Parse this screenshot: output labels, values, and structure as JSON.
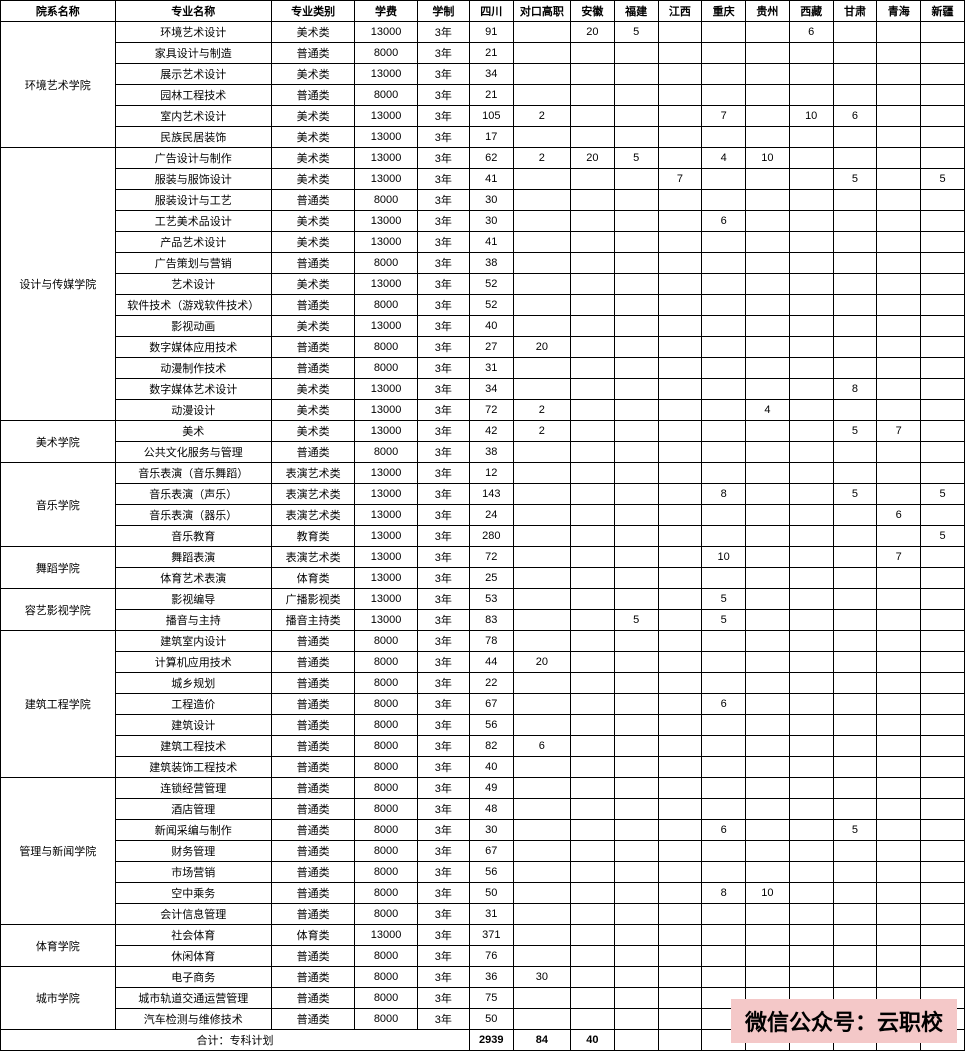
{
  "headers": {
    "dept": "院系名称",
    "major": "专业名称",
    "type": "专业类别",
    "fee": "学费",
    "duration": "学制",
    "provinces": [
      "四川",
      "对口高职",
      "安徽",
      "福建",
      "江西",
      "重庆",
      "贵州",
      "西藏",
      "甘肃",
      "青海",
      "新疆"
    ]
  },
  "totals": {
    "label": "合计：专科计划",
    "values": [
      "2939",
      "84",
      "40",
      "",
      "",
      "",
      "",
      "",
      "",
      "",
      ""
    ]
  },
  "banner": "微信公众号：云职校",
  "departments": [
    {
      "name": "环境艺术学院",
      "rows": [
        {
          "major": "环境艺术设计",
          "type": "美术类",
          "fee": "13000",
          "dur": "3年",
          "v": [
            "91",
            "",
            "20",
            "5",
            "",
            "",
            "",
            "6",
            "",
            "",
            ""
          ]
        },
        {
          "major": "家具设计与制造",
          "type": "普通类",
          "fee": "8000",
          "dur": "3年",
          "v": [
            "21",
            "",
            "",
            "",
            "",
            "",
            "",
            "",
            "",
            "",
            ""
          ]
        },
        {
          "major": "展示艺术设计",
          "type": "美术类",
          "fee": "13000",
          "dur": "3年",
          "v": [
            "34",
            "",
            "",
            "",
            "",
            "",
            "",
            "",
            "",
            "",
            ""
          ]
        },
        {
          "major": "园林工程技术",
          "type": "普通类",
          "fee": "8000",
          "dur": "3年",
          "v": [
            "21",
            "",
            "",
            "",
            "",
            "",
            "",
            "",
            "",
            "",
            ""
          ]
        },
        {
          "major": "室内艺术设计",
          "type": "美术类",
          "fee": "13000",
          "dur": "3年",
          "v": [
            "105",
            "2",
            "",
            "",
            "",
            "7",
            "",
            "10",
            "6",
            "",
            ""
          ]
        },
        {
          "major": "民族民居装饰",
          "type": "美术类",
          "fee": "13000",
          "dur": "3年",
          "v": [
            "17",
            "",
            "",
            "",
            "",
            "",
            "",
            "",
            "",
            "",
            ""
          ]
        }
      ]
    },
    {
      "name": "设计与传媒学院",
      "rows": [
        {
          "major": "广告设计与制作",
          "type": "美术类",
          "fee": "13000",
          "dur": "3年",
          "v": [
            "62",
            "2",
            "20",
            "5",
            "",
            "4",
            "10",
            "",
            "",
            "",
            ""
          ]
        },
        {
          "major": "服装与服饰设计",
          "type": "美术类",
          "fee": "13000",
          "dur": "3年",
          "v": [
            "41",
            "",
            "",
            "",
            "7",
            "",
            "",
            "",
            "5",
            "",
            "5"
          ]
        },
        {
          "major": "服装设计与工艺",
          "type": "普通类",
          "fee": "8000",
          "dur": "3年",
          "v": [
            "30",
            "",
            "",
            "",
            "",
            "",
            "",
            "",
            "",
            "",
            ""
          ]
        },
        {
          "major": "工艺美术品设计",
          "type": "美术类",
          "fee": "13000",
          "dur": "3年",
          "v": [
            "30",
            "",
            "",
            "",
            "",
            "6",
            "",
            "",
            "",
            "",
            ""
          ]
        },
        {
          "major": "产品艺术设计",
          "type": "美术类",
          "fee": "13000",
          "dur": "3年",
          "v": [
            "41",
            "",
            "",
            "",
            "",
            "",
            "",
            "",
            "",
            "",
            ""
          ]
        },
        {
          "major": "广告策划与营销",
          "type": "普通类",
          "fee": "8000",
          "dur": "3年",
          "v": [
            "38",
            "",
            "",
            "",
            "",
            "",
            "",
            "",
            "",
            "",
            ""
          ]
        },
        {
          "major": "艺术设计",
          "type": "美术类",
          "fee": "13000",
          "dur": "3年",
          "v": [
            "52",
            "",
            "",
            "",
            "",
            "",
            "",
            "",
            "",
            "",
            ""
          ]
        },
        {
          "major": "软件技术（游戏软件技术）",
          "type": "普通类",
          "fee": "8000",
          "dur": "3年",
          "v": [
            "52",
            "",
            "",
            "",
            "",
            "",
            "",
            "",
            "",
            "",
            ""
          ]
        },
        {
          "major": "影视动画",
          "type": "美术类",
          "fee": "13000",
          "dur": "3年",
          "v": [
            "40",
            "",
            "",
            "",
            "",
            "",
            "",
            "",
            "",
            "",
            ""
          ]
        },
        {
          "major": "数字媒体应用技术",
          "type": "普通类",
          "fee": "8000",
          "dur": "3年",
          "v": [
            "27",
            "20",
            "",
            "",
            "",
            "",
            "",
            "",
            "",
            "",
            ""
          ]
        },
        {
          "major": "动漫制作技术",
          "type": "普通类",
          "fee": "8000",
          "dur": "3年",
          "v": [
            "31",
            "",
            "",
            "",
            "",
            "",
            "",
            "",
            "",
            "",
            ""
          ]
        },
        {
          "major": "数字媒体艺术设计",
          "type": "美术类",
          "fee": "13000",
          "dur": "3年",
          "v": [
            "34",
            "",
            "",
            "",
            "",
            "",
            "",
            "",
            "8",
            "",
            ""
          ]
        },
        {
          "major": "动漫设计",
          "type": "美术类",
          "fee": "13000",
          "dur": "3年",
          "v": [
            "72",
            "2",
            "",
            "",
            "",
            "",
            "4",
            "",
            "",
            "",
            ""
          ]
        }
      ]
    },
    {
      "name": "美术学院",
      "rows": [
        {
          "major": "美术",
          "type": "美术类",
          "fee": "13000",
          "dur": "3年",
          "v": [
            "42",
            "2",
            "",
            "",
            "",
            "",
            "",
            "",
            "5",
            "7",
            ""
          ]
        },
        {
          "major": "公共文化服务与管理",
          "type": "普通类",
          "fee": "8000",
          "dur": "3年",
          "v": [
            "38",
            "",
            "",
            "",
            "",
            "",
            "",
            "",
            "",
            "",
            ""
          ]
        }
      ]
    },
    {
      "name": "音乐学院",
      "rows": [
        {
          "major": "音乐表演（音乐舞蹈）",
          "type": "表演艺术类",
          "fee": "13000",
          "dur": "3年",
          "v": [
            "12",
            "",
            "",
            "",
            "",
            "",
            "",
            "",
            "",
            "",
            ""
          ]
        },
        {
          "major": "音乐表演（声乐）",
          "type": "表演艺术类",
          "fee": "13000",
          "dur": "3年",
          "v": [
            "143",
            "",
            "",
            "",
            "",
            "8",
            "",
            "",
            "5",
            "",
            "5"
          ]
        },
        {
          "major": "音乐表演（器乐）",
          "type": "表演艺术类",
          "fee": "13000",
          "dur": "3年",
          "v": [
            "24",
            "",
            "",
            "",
            "",
            "",
            "",
            "",
            "",
            "6",
            ""
          ]
        },
        {
          "major": "音乐教育",
          "type": "教育类",
          "fee": "13000",
          "dur": "3年",
          "v": [
            "280",
            "",
            "",
            "",
            "",
            "",
            "",
            "",
            "",
            "",
            "5"
          ]
        }
      ]
    },
    {
      "name": "舞蹈学院",
      "rows": [
        {
          "major": "舞蹈表演",
          "type": "表演艺术类",
          "fee": "13000",
          "dur": "3年",
          "v": [
            "72",
            "",
            "",
            "",
            "",
            "10",
            "",
            "",
            "",
            "7",
            ""
          ]
        },
        {
          "major": "体育艺术表演",
          "type": "体育类",
          "fee": "13000",
          "dur": "3年",
          "v": [
            "25",
            "",
            "",
            "",
            "",
            "",
            "",
            "",
            "",
            "",
            ""
          ]
        }
      ]
    },
    {
      "name": "容艺影视学院",
      "rows": [
        {
          "major": "影视编导",
          "type": "广播影视类",
          "fee": "13000",
          "dur": "3年",
          "v": [
            "53",
            "",
            "",
            "",
            "",
            "5",
            "",
            "",
            "",
            "",
            ""
          ]
        },
        {
          "major": "播音与主持",
          "type": "播音主持类",
          "fee": "13000",
          "dur": "3年",
          "v": [
            "83",
            "",
            "",
            "5",
            "",
            "5",
            "",
            "",
            "",
            "",
            ""
          ]
        }
      ]
    },
    {
      "name": "建筑工程学院",
      "rows": [
        {
          "major": "建筑室内设计",
          "type": "普通类",
          "fee": "8000",
          "dur": "3年",
          "v": [
            "78",
            "",
            "",
            "",
            "",
            "",
            "",
            "",
            "",
            "",
            ""
          ]
        },
        {
          "major": "计算机应用技术",
          "type": "普通类",
          "fee": "8000",
          "dur": "3年",
          "v": [
            "44",
            "20",
            "",
            "",
            "",
            "",
            "",
            "",
            "",
            "",
            ""
          ]
        },
        {
          "major": "城乡规划",
          "type": "普通类",
          "fee": "8000",
          "dur": "3年",
          "v": [
            "22",
            "",
            "",
            "",
            "",
            "",
            "",
            "",
            "",
            "",
            ""
          ]
        },
        {
          "major": "工程造价",
          "type": "普通类",
          "fee": "8000",
          "dur": "3年",
          "v": [
            "67",
            "",
            "",
            "",
            "",
            "6",
            "",
            "",
            "",
            "",
            ""
          ]
        },
        {
          "major": "建筑设计",
          "type": "普通类",
          "fee": "8000",
          "dur": "3年",
          "v": [
            "56",
            "",
            "",
            "",
            "",
            "",
            "",
            "",
            "",
            "",
            ""
          ]
        },
        {
          "major": "建筑工程技术",
          "type": "普通类",
          "fee": "8000",
          "dur": "3年",
          "v": [
            "82",
            "6",
            "",
            "",
            "",
            "",
            "",
            "",
            "",
            "",
            ""
          ]
        },
        {
          "major": "建筑装饰工程技术",
          "type": "普通类",
          "fee": "8000",
          "dur": "3年",
          "v": [
            "40",
            "",
            "",
            "",
            "",
            "",
            "",
            "",
            "",
            "",
            ""
          ]
        }
      ]
    },
    {
      "name": "管理与新闻学院",
      "rows": [
        {
          "major": "连锁经营管理",
          "type": "普通类",
          "fee": "8000",
          "dur": "3年",
          "v": [
            "49",
            "",
            "",
            "",
            "",
            "",
            "",
            "",
            "",
            "",
            ""
          ]
        },
        {
          "major": "酒店管理",
          "type": "普通类",
          "fee": "8000",
          "dur": "3年",
          "v": [
            "48",
            "",
            "",
            "",
            "",
            "",
            "",
            "",
            "",
            "",
            ""
          ]
        },
        {
          "major": "新闻采编与制作",
          "type": "普通类",
          "fee": "8000",
          "dur": "3年",
          "v": [
            "30",
            "",
            "",
            "",
            "",
            "6",
            "",
            "",
            "5",
            "",
            ""
          ]
        },
        {
          "major": "财务管理",
          "type": "普通类",
          "fee": "8000",
          "dur": "3年",
          "v": [
            "67",
            "",
            "",
            "",
            "",
            "",
            "",
            "",
            "",
            "",
            ""
          ]
        },
        {
          "major": "市场营销",
          "type": "普通类",
          "fee": "8000",
          "dur": "3年",
          "v": [
            "56",
            "",
            "",
            "",
            "",
            "",
            "",
            "",
            "",
            "",
            ""
          ]
        },
        {
          "major": "空中乘务",
          "type": "普通类",
          "fee": "8000",
          "dur": "3年",
          "v": [
            "50",
            "",
            "",
            "",
            "",
            "8",
            "10",
            "",
            "",
            "",
            ""
          ]
        },
        {
          "major": "会计信息管理",
          "type": "普通类",
          "fee": "8000",
          "dur": "3年",
          "v": [
            "31",
            "",
            "",
            "",
            "",
            "",
            "",
            "",
            "",
            "",
            ""
          ]
        }
      ]
    },
    {
      "name": "体育学院",
      "rows": [
        {
          "major": "社会体育",
          "type": "体育类",
          "fee": "13000",
          "dur": "3年",
          "v": [
            "371",
            "",
            "",
            "",
            "",
            "",
            "",
            "",
            "",
            "",
            ""
          ]
        },
        {
          "major": "休闲体育",
          "type": "普通类",
          "fee": "8000",
          "dur": "3年",
          "v": [
            "76",
            "",
            "",
            "",
            "",
            "",
            "",
            "",
            "",
            "",
            ""
          ]
        }
      ]
    },
    {
      "name": "城市学院",
      "rows": [
        {
          "major": "电子商务",
          "type": "普通类",
          "fee": "8000",
          "dur": "3年",
          "v": [
            "36",
            "30",
            "",
            "",
            "",
            "",
            "",
            "",
            "",
            "",
            ""
          ]
        },
        {
          "major": "城市轨道交通运营管理",
          "type": "普通类",
          "fee": "8000",
          "dur": "3年",
          "v": [
            "75",
            "",
            "",
            "",
            "",
            "",
            "",
            "",
            "",
            "",
            ""
          ]
        },
        {
          "major": "汽车检测与维修技术",
          "type": "普通类",
          "fee": "8000",
          "dur": "3年",
          "v": [
            "50",
            "",
            "",
            "",
            "",
            "",
            "",
            "",
            "",
            "",
            ""
          ]
        }
      ]
    }
  ]
}
